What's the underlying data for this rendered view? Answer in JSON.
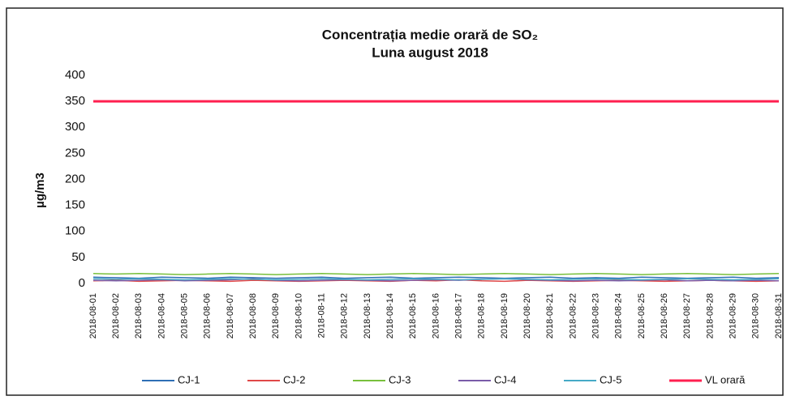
{
  "chart_data": {
    "type": "line",
    "title": "Concentrația medie orară de SO₂",
    "subtitle": "Luna august 2018",
    "y_label": "µg/m3",
    "categories": [
      "2018-08-01",
      "2018-08-02",
      "2018-08-03",
      "2018-08-04",
      "2018-08-05",
      "2018-08-06",
      "2018-08-07",
      "2018-08-08",
      "2018-08-09",
      "2018-08-10",
      "2018-08-11",
      "2018-08-12",
      "2018-08-13",
      "2018-08-14",
      "2018-08-15",
      "2018-08-16",
      "2018-08-17",
      "2018-08-18",
      "2018-08-19",
      "2018-08-20",
      "2018-08-21",
      "2018-08-22",
      "2018-08-23",
      "2018-08-24",
      "2018-08-25",
      "2018-08-26",
      "2018-08-27",
      "2018-08-28",
      "2018-08-29",
      "2018-08-30",
      "2018-08-31"
    ],
    "series": [
      {
        "name": "CJ-1",
        "color": "#2e6fb5",
        "values": [
          12,
          11,
          10,
          12,
          11,
          10,
          12,
          11,
          10,
          11,
          12,
          10,
          11,
          12,
          10,
          11,
          12,
          11,
          10,
          11,
          12,
          10,
          11,
          10,
          12,
          11,
          10,
          11,
          12,
          10,
          11
        ]
      },
      {
        "name": "CJ-2",
        "color": "#e04848",
        "values": [
          5,
          6,
          4,
          5,
          6,
          5,
          4,
          6,
          5,
          4,
          5,
          6,
          5,
          4,
          6,
          5,
          7,
          5,
          4,
          6,
          5,
          4,
          5,
          6,
          5,
          4,
          5,
          6,
          5,
          4,
          5
        ]
      },
      {
        "name": "CJ-3",
        "color": "#78c03c",
        "values": [
          19,
          18,
          19,
          18,
          17,
          18,
          19,
          18,
          17,
          18,
          19,
          18,
          17,
          18,
          19,
          18,
          17,
          18,
          19,
          18,
          17,
          18,
          19,
          18,
          17,
          18,
          19,
          18,
          17,
          18,
          19
        ]
      },
      {
        "name": "CJ-4",
        "color": "#7a5ca8",
        "values": [
          6,
          5,
          6,
          7,
          5,
          6,
          7,
          9,
          6,
          5,
          6,
          7,
          6,
          5,
          6,
          7,
          6,
          8,
          9,
          7,
          6,
          5,
          6,
          5,
          6,
          7,
          5,
          6,
          5,
          6,
          5
        ]
      },
      {
        "name": "CJ-5",
        "color": "#46aac6",
        "values": [
          9,
          8,
          9,
          8,
          7,
          8,
          9,
          8,
          7,
          8,
          9,
          8,
          7,
          8,
          9,
          8,
          7,
          8,
          9,
          8,
          7,
          8,
          9,
          8,
          7,
          8,
          9,
          8,
          7,
          8,
          9
        ]
      },
      {
        "name": "VL orară",
        "color": "#ff1f4f",
        "values": [
          350,
          350,
          350,
          350,
          350,
          350,
          350,
          350,
          350,
          350,
          350,
          350,
          350,
          350,
          350,
          350,
          350,
          350,
          350,
          350,
          350,
          350,
          350,
          350,
          350,
          350,
          350,
          350,
          350,
          350,
          350
        ]
      }
    ],
    "ylim": [
      0,
      400
    ],
    "yticks": [
      0,
      50,
      100,
      150,
      200,
      250,
      300,
      350,
      400
    ],
    "grid": false,
    "legend": "bottom"
  }
}
